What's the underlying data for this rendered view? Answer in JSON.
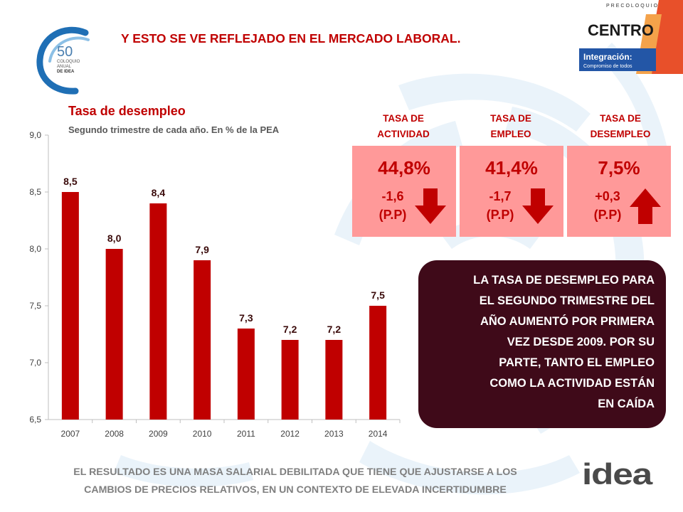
{
  "header": {
    "title": "Y ESTO SE VE REFLEJADO  EN EL MERCADO LABORAL."
  },
  "logos": {
    "coloquio": {
      "number": "50",
      "line1": "COLOQUIO",
      "line2": "ANUAL",
      "line3": "DE IDEA"
    },
    "precoloquio": {
      "top": "PRECOLOQUIO",
      "main": "CENTRO",
      "tag1": "Integración:",
      "tag2": "Compromiso de todos"
    },
    "idea": "idea"
  },
  "colors": {
    "bar": "#c00000",
    "accent": "#c00000",
    "box_bg": "#ff9999",
    "message_bg": "#3f0a19",
    "footer_text": "#7f7f7f"
  },
  "chart_data": {
    "type": "bar",
    "title": "Tasa de desempleo",
    "subtitle": "Segundo trimestre de cada año. En % de la PEA",
    "categories": [
      "2007",
      "2008",
      "2009",
      "2010",
      "2011",
      "2012",
      "2013",
      "2014"
    ],
    "values": [
      8.5,
      8.0,
      8.4,
      7.9,
      7.3,
      7.2,
      7.2,
      7.5
    ],
    "data_labels": [
      "8,5",
      "8,0",
      "8,4",
      "7,9",
      "7,3",
      "7,2",
      "7,2",
      "7,5"
    ],
    "yticks": [
      "6,5",
      "7,0",
      "7,5",
      "8,0",
      "8,5",
      "9,0"
    ],
    "ytick_values": [
      6.5,
      7.0,
      7.5,
      8.0,
      8.5,
      9.0
    ],
    "ylim": [
      6.5,
      9.0
    ],
    "grid": false,
    "legend": "none"
  },
  "indicators": [
    {
      "label_line1": "TASA DE",
      "label_line2": "ACTIVIDAD",
      "value": "44,8%",
      "change": "-1,6",
      "unit": "(P.P)",
      "direction": "down",
      "icon": "arrow-down-icon"
    },
    {
      "label_line1": "TASA DE",
      "label_line2": "EMPLEO",
      "value": "41,4%",
      "change": "-1,7",
      "unit": "(P.P)",
      "direction": "down",
      "icon": "arrow-down-icon"
    },
    {
      "label_line1": "TASA DE",
      "label_line2": "DESEMPLEO",
      "value": "7,5%",
      "change": "+0,3",
      "unit": "(P.P)",
      "direction": "up",
      "icon": "arrow-up-icon"
    }
  ],
  "message": {
    "lines": [
      "LA TASA DE DESEMPLEO PARA",
      "EL SEGUNDO TRIMESTRE DEL",
      "AÑO AUMENTÓ POR PRIMERA",
      "VEZ DESDE 2009. POR SU",
      "PARTE, TANTO EL EMPLEO",
      "COMO LA ACTIVIDAD ESTÁN",
      "EN CAÍDA"
    ]
  },
  "footer": {
    "line1": "EL RESULTADO ES UNA MASA SALARIAL DEBILITADA QUE TIENE QUE AJUSTARSE A LOS",
    "line2": "CAMBIOS DE PRECIOS RELATIVOS, EN UN CONTEXTO DE ELEVADA INCERTIDUMBRE"
  }
}
